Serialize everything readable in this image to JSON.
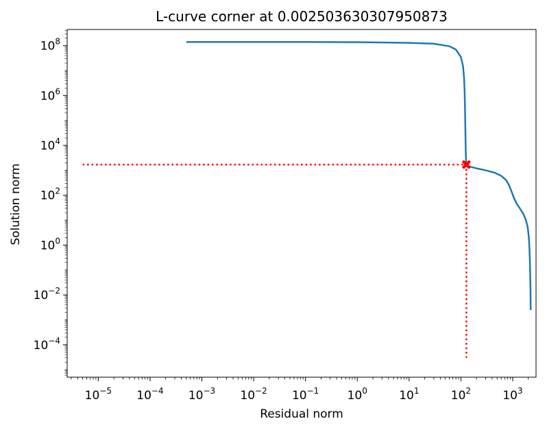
{
  "chart_data": {
    "type": "line",
    "title": "L-curve corner at 0.002503630307950873",
    "xlabel": "Residual norm",
    "ylabel": "Solution norm",
    "xscale": "log",
    "yscale": "log",
    "xlim_exponent": [
      -5.6,
      3.45
    ],
    "ylim_exponent": [
      -5.3,
      8.65
    ],
    "x_tick_exponents": [
      -5,
      -4,
      -3,
      -2,
      -1,
      0,
      1,
      2,
      3
    ],
    "y_tick_exponents": [
      -4,
      -2,
      0,
      2,
      4,
      6,
      8
    ],
    "grid": false,
    "series": [
      {
        "color": "#1f77b4",
        "x": [
          0.0005,
          0.001,
          0.01,
          0.1,
          1,
          10,
          30,
          60,
          80,
          100,
          110,
          115,
          118,
          120,
          122,
          124,
          125,
          126,
          126.5,
          127,
          127.3,
          127.5,
          128,
          130,
          150,
          200,
          300,
          450,
          600,
          750,
          850,
          950,
          1050,
          1200,
          1400,
          1600,
          1800,
          1950,
          2050,
          2100,
          2150,
          2180,
          2200,
          2210,
          2220
        ],
        "y": [
          140000000,
          140000000,
          140000000,
          140000000,
          138000000,
          130000000,
          120000000,
          95000000,
          70000000,
          35000000,
          15000000,
          5000000,
          1500000,
          300000,
          40000,
          6000,
          3500,
          2500,
          2100,
          1850,
          1750,
          1700,
          1600,
          1550,
          1400,
          1200,
          1000,
          800,
          600,
          400,
          250,
          140,
          80,
          45,
          28,
          18,
          10,
          5,
          2,
          0.8,
          0.2,
          0.05,
          0.02,
          0.008,
          0.0025
        ]
      }
    ],
    "corner": {
      "x": 127.5,
      "y": 1700,
      "marker": "X",
      "color": "#ff0000"
    },
    "guide_lines": {
      "style": "dotted",
      "color": "#ff0000",
      "horizontal_from_x": 5e-06,
      "vertical_to_y": 3e-05
    }
  }
}
